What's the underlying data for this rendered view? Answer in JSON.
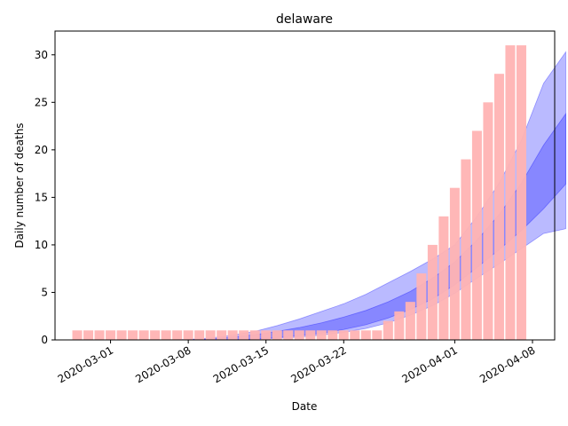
{
  "chart_data": {
    "type": "bar",
    "title": "delaware",
    "xlabel": "Date",
    "ylabel": "Daily number of deaths",
    "x_ticks": [
      "2020-03-01",
      "2020-03-08",
      "2020-03-15",
      "2020-03-22",
      "2020-04-01",
      "2020-04-08"
    ],
    "y_ticks": [
      0,
      5,
      10,
      15,
      20,
      25,
      30
    ],
    "ylim": [
      0,
      32.5
    ],
    "xlim": [
      "2020-02-25",
      "2020-04-10"
    ],
    "bar_color": "#ffb3b3",
    "band_color": "#0000ff",
    "bars": {
      "dates": [
        "2020-02-27",
        "2020-02-28",
        "2020-02-29",
        "2020-03-01",
        "2020-03-02",
        "2020-03-03",
        "2020-03-04",
        "2020-03-05",
        "2020-03-06",
        "2020-03-07",
        "2020-03-08",
        "2020-03-09",
        "2020-03-10",
        "2020-03-11",
        "2020-03-12",
        "2020-03-13",
        "2020-03-14",
        "2020-03-15",
        "2020-03-16",
        "2020-03-17",
        "2020-03-18",
        "2020-03-19",
        "2020-03-20",
        "2020-03-21",
        "2020-03-22",
        "2020-03-23",
        "2020-03-24",
        "2020-03-25",
        "2020-03-26",
        "2020-03-27",
        "2020-03-28",
        "2020-03-29",
        "2020-03-30",
        "2020-03-31",
        "2020-04-01",
        "2020-04-02",
        "2020-04-03",
        "2020-04-04",
        "2020-04-05",
        "2020-04-06",
        "2020-04-07"
      ],
      "values": [
        1,
        1,
        1,
        1,
        1,
        1,
        1,
        1,
        1,
        1,
        1,
        1,
        1,
        1,
        1,
        1,
        1,
        1,
        1,
        1,
        1,
        1,
        1,
        1,
        1,
        1,
        1,
        1,
        2,
        3,
        4,
        7,
        10,
        13,
        16,
        19,
        22,
        25,
        28,
        31,
        31
      ]
    },
    "bands": [
      {
        "dates": [
          "2020-03-06",
          "2020-03-08",
          "2020-03-10",
          "2020-03-12",
          "2020-03-14",
          "2020-03-16",
          "2020-03-18",
          "2020-03-20",
          "2020-03-22",
          "2020-03-24",
          "2020-03-26",
          "2020-03-28",
          "2020-03-30",
          "2020-04-01",
          "2020-04-03",
          "2020-04-05",
          "2020-04-07",
          "2020-04-09",
          "2020-04-11"
        ],
        "lower": [
          0,
          0,
          0,
          0,
          0.05,
          0.15,
          0.3,
          0.5,
          0.8,
          1.2,
          1.8,
          2.6,
          3.6,
          4.9,
          6.5,
          8.0,
          9.6,
          11.2,
          11.7
        ],
        "upper": [
          0,
          0.05,
          0.2,
          0.5,
          0.9,
          1.5,
          2.2,
          3.0,
          3.8,
          4.8,
          6.0,
          7.2,
          8.5,
          10.0,
          13.0,
          16.5,
          21.0,
          27.0,
          30.3
        ]
      },
      {
        "dates": [
          "2020-03-06",
          "2020-03-08",
          "2020-03-10",
          "2020-03-12",
          "2020-03-14",
          "2020-03-16",
          "2020-03-18",
          "2020-03-20",
          "2020-03-22",
          "2020-03-24",
          "2020-03-26",
          "2020-03-28",
          "2020-03-30",
          "2020-04-01",
          "2020-04-03",
          "2020-04-05",
          "2020-04-07",
          "2020-04-09",
          "2020-04-11"
        ],
        "lower": [
          0,
          0,
          0,
          0,
          0.1,
          0.25,
          0.45,
          0.7,
          1.1,
          1.6,
          2.3,
          3.2,
          4.3,
          5.8,
          7.6,
          9.5,
          11.5,
          13.8,
          16.4
        ],
        "upper": [
          0,
          0.02,
          0.1,
          0.3,
          0.55,
          0.9,
          1.3,
          1.8,
          2.4,
          3.1,
          4.0,
          5.1,
          6.5,
          8.2,
          10.5,
          13.2,
          16.5,
          20.5,
          23.8
        ]
      }
    ]
  }
}
